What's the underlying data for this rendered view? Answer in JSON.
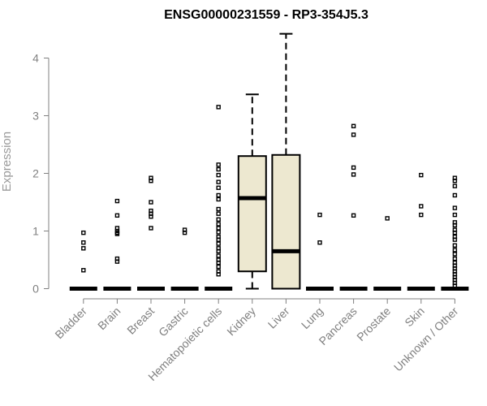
{
  "chart_data": {
    "type": "boxplot",
    "title": "ENSG00000231559 - RP3-354J5.3",
    "xlabel": "",
    "ylabel": "Expression",
    "ylim": [
      0,
      4.4
    ],
    "yticks": [
      "0",
      "1",
      "2",
      "3",
      "4"
    ],
    "grid": false,
    "colors": {
      "box_fill": "#ede8d0",
      "stroke": "#000000",
      "axis": "#808080"
    },
    "categories": [
      "Bladder",
      "Brain",
      "Breast",
      "Gastric",
      "Hematopoietic cells",
      "Kidney",
      "Liver",
      "Lung",
      "Pancreas",
      "Prostate",
      "Skin",
      "Unknown / Other"
    ],
    "boxes": [
      {
        "name": "Bladder",
        "min": 0,
        "q1": 0,
        "median": 0,
        "q3": 0,
        "max": 0,
        "outliers": [
          0.97,
          0.8,
          0.7,
          0.32
        ]
      },
      {
        "name": "Brain",
        "min": 0,
        "q1": 0,
        "median": 0,
        "q3": 0,
        "max": 0,
        "outliers": [
          1.52,
          1.27,
          1.05,
          1.0,
          0.97,
          0.95,
          0.52,
          0.47
        ]
      },
      {
        "name": "Breast",
        "min": 0,
        "q1": 0,
        "median": 0,
        "q3": 0,
        "max": 0,
        "outliers": [
          1.92,
          1.87,
          1.5,
          1.35,
          1.3,
          1.25,
          1.05
        ]
      },
      {
        "name": "Gastric",
        "min": 0,
        "q1": 0,
        "median": 0,
        "q3": 0,
        "max": 0,
        "outliers": [
          1.02,
          0.97
        ]
      },
      {
        "name": "Hematopoietic cells",
        "min": 0,
        "q1": 0,
        "median": 0,
        "q3": 0,
        "max": 0,
        "outliers": [
          3.15,
          2.15,
          2.07,
          1.97,
          1.85,
          1.75,
          1.62,
          1.55,
          1.38,
          1.3,
          1.2,
          1.12,
          1.05,
          0.98,
          0.9,
          0.85,
          0.78,
          0.7,
          0.65,
          0.57,
          0.5,
          0.45,
          0.38,
          0.3,
          0.25
        ]
      },
      {
        "name": "Kidney",
        "min": 0,
        "q1": 0.3,
        "median": 1.57,
        "q3": 2.3,
        "max": 3.37,
        "outliers": []
      },
      {
        "name": "Liver",
        "min": 0,
        "q1": 0,
        "median": 0.65,
        "q3": 2.32,
        "max": 4.42,
        "outliers": []
      },
      {
        "name": "Lung",
        "min": 0,
        "q1": 0,
        "median": 0,
        "q3": 0,
        "max": 0,
        "outliers": [
          1.28,
          0.8
        ]
      },
      {
        "name": "Pancreas",
        "min": 0,
        "q1": 0,
        "median": 0,
        "q3": 0,
        "max": 0,
        "outliers": [
          2.82,
          2.67,
          2.1,
          1.98,
          1.27
        ]
      },
      {
        "name": "Prostate",
        "min": 0,
        "q1": 0,
        "median": 0,
        "q3": 0,
        "max": 0,
        "outliers": [
          1.22
        ]
      },
      {
        "name": "Skin",
        "min": 0,
        "q1": 0,
        "median": 0,
        "q3": 0,
        "max": 0,
        "outliers": [
          1.97,
          1.43,
          1.28
        ]
      },
      {
        "name": "Unknown / Other",
        "min": 0,
        "q1": 0,
        "median": 0,
        "q3": 0,
        "max": 0,
        "outliers": [
          1.92,
          1.87,
          1.78,
          1.62,
          1.4,
          1.28,
          1.15,
          1.1,
          1.02,
          0.97,
          0.9,
          0.85,
          0.75,
          0.67,
          0.6,
          0.52,
          0.45,
          0.4,
          0.35,
          0.3,
          0.25,
          0.2,
          0.15,
          0.1,
          0.05
        ]
      }
    ]
  }
}
